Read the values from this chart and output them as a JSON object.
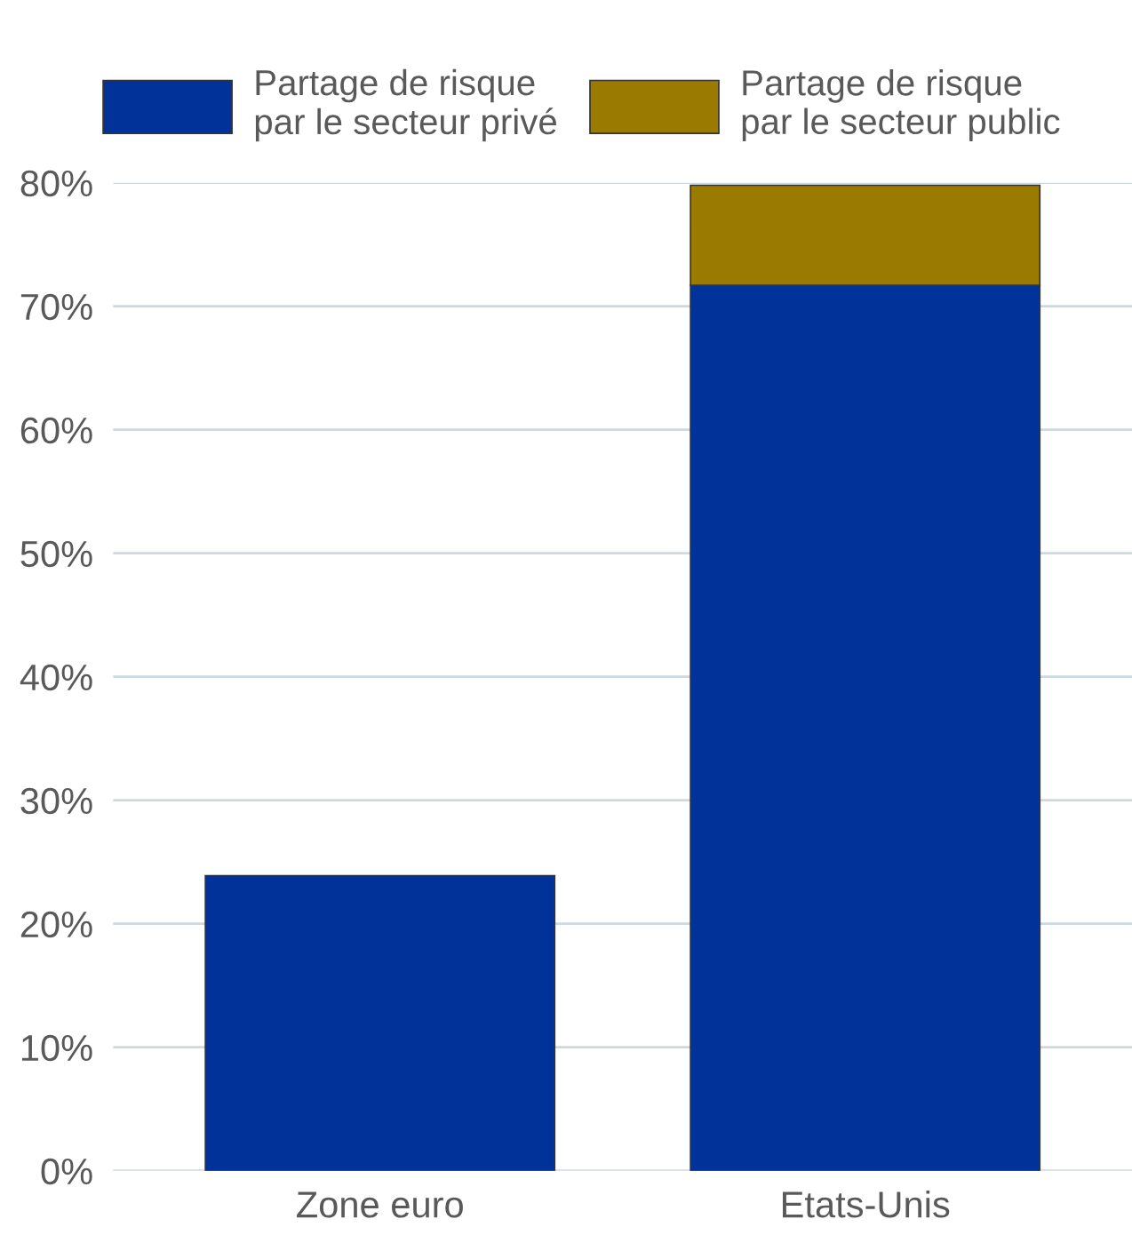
{
  "chart_data": {
    "type": "bar",
    "stacked": true,
    "categories": [
      "Zone euro",
      "Etats-Unis"
    ],
    "series": [
      {
        "name": "Partage de risque\npar le secteur privé",
        "color": "#003299",
        "values": [
          23.9,
          71.7
        ]
      },
      {
        "name": "Partage de risque\npar le secteur public",
        "color": "#9a7b00",
        "values": [
          null,
          8.1
        ]
      }
    ],
    "ylim": [
      0,
      80
    ],
    "yticks": [
      {
        "value": 0,
        "label": "0%"
      },
      {
        "value": 10,
        "label": "10%"
      },
      {
        "value": 20,
        "label": "20%"
      },
      {
        "value": 30,
        "label": "30%"
      },
      {
        "value": 40,
        "label": "40%"
      },
      {
        "value": 50,
        "label": "50%"
      },
      {
        "value": 60,
        "label": "60%"
      },
      {
        "value": 70,
        "label": "70%"
      },
      {
        "value": 80,
        "label": "80%"
      }
    ],
    "grid": "y",
    "legend": "top"
  }
}
